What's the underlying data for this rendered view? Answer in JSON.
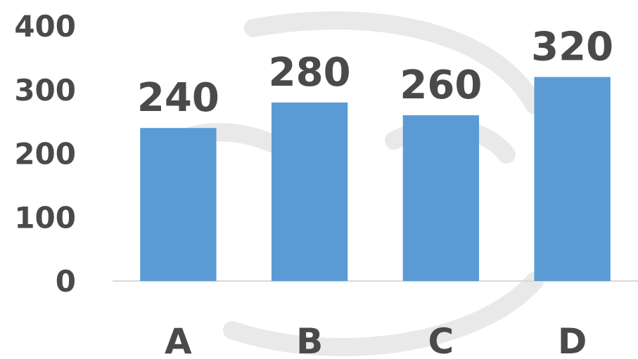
{
  "chart_data": {
    "type": "bar",
    "categories": [
      "A",
      "B",
      "C",
      "D"
    ],
    "values": [
      240,
      280,
      260,
      320
    ],
    "data_labels": [
      "240",
      "280",
      "260",
      "320"
    ],
    "yticks": [
      "0",
      "100",
      "200",
      "300",
      "400"
    ],
    "ylim": [
      0,
      400
    ],
    "grid": false,
    "legend": "none",
    "colors": {
      "bar": "#5b9bd5",
      "text": "#4a4a4a",
      "axis": "#d9d9d9"
    }
  }
}
